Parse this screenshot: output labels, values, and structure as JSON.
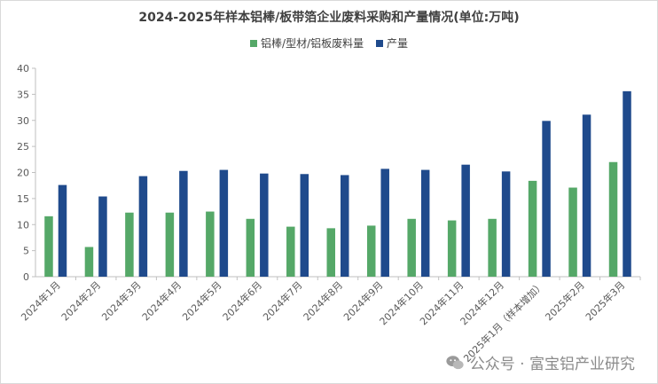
{
  "colors": {
    "waste": "#55A868",
    "output": "#1F4A8C",
    "axis": "#595959",
    "grid": "#E5E5E5"
  },
  "watermark": "公众号 · 富宝铝产业研究",
  "chart_data": {
    "type": "bar",
    "title": "2024-2025年样本铝棒/板带箔企业废料采购和产量情况(单位:万吨)",
    "xlabel": "",
    "ylabel": "",
    "ylim": [
      0,
      40
    ],
    "yticks": [
      0,
      5,
      10,
      15,
      20,
      25,
      30,
      35,
      40
    ],
    "grid": false,
    "legend_position": "top",
    "categories": [
      "2024年1月",
      "2024年2月",
      "2024年3月",
      "2024年4月",
      "2024年5月",
      "2024年6月",
      "2024年7月",
      "2024年8月",
      "2024年9月",
      "2024年10月",
      "2024年11月",
      "2024年12月",
      "2025年1月（样本增加）",
      "2025年2月",
      "2025年3月"
    ],
    "series": [
      {
        "name": "铝棒/型材/铝板废料量",
        "color": "#55A868",
        "values": [
          11.6,
          5.7,
          12.3,
          12.3,
          12.5,
          11.1,
          9.6,
          9.3,
          9.8,
          11.1,
          10.8,
          11.1,
          18.4,
          17.1,
          22.0
        ]
      },
      {
        "name": "产量",
        "color": "#1F4A8C",
        "values": [
          17.6,
          15.4,
          19.3,
          20.3,
          20.5,
          19.8,
          19.7,
          19.5,
          20.7,
          20.5,
          21.5,
          20.2,
          29.9,
          31.1,
          35.6
        ]
      }
    ]
  }
}
